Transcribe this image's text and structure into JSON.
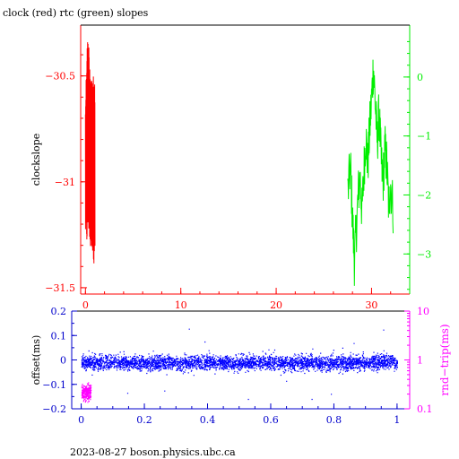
{
  "title": "clock (red) rtc (green) slopes",
  "footer": "2023-08-27 boson.physics.ubc.ca",
  "colors": {
    "red": "#ff0000",
    "green": "#00ee00",
    "blue": "#0000ff",
    "magenta": "#ff00ff",
    "axis_blue": "#0000cc",
    "black": "#000000"
  },
  "chart_data": [
    {
      "type": "line",
      "title": "clock (red) rtc (green) slopes",
      "ylabel": "clockslope",
      "xlim": [
        -0.5,
        34
      ],
      "ylim": [
        -31.53,
        -30.26
      ],
      "x_ticks": [
        0,
        10,
        20,
        30
      ],
      "y_ticks": [
        -30.5,
        -31,
        -31.5
      ],
      "y_tick_labels": [
        "−30.5",
        "−31",
        "−31.5"
      ],
      "y2lim": [
        -3.68,
        0.88
      ],
      "y2_ticks": [
        0,
        -1,
        -2,
        -3
      ],
      "y2_tick_labels": [
        "0",
        "−1",
        "−2",
        "−3"
      ],
      "series": [
        {
          "color": "#ff0000",
          "axis": "left",
          "x_range": [
            0.0,
            1.0
          ],
          "n": 90,
          "envelope_top": [
            [
              0.0,
              -30.62
            ],
            [
              0.15,
              -30.35
            ],
            [
              0.3,
              -30.3
            ],
            [
              0.5,
              -30.45
            ],
            [
              0.7,
              -30.5
            ],
            [
              0.85,
              -30.5
            ],
            [
              1.0,
              -30.55
            ]
          ],
          "envelope_bottom": [
            [
              0.0,
              -31.25
            ],
            [
              0.15,
              -31.3
            ],
            [
              0.3,
              -31.22
            ],
            [
              0.5,
              -31.32
            ],
            [
              0.7,
              -31.3
            ],
            [
              0.85,
              -31.45
            ],
            [
              1.0,
              -31.35
            ]
          ]
        },
        {
          "color": "#00ee00",
          "axis": "right",
          "x": [
            27.5,
            27.8,
            28.0,
            28.2,
            28.4,
            28.6,
            28.8,
            29.0,
            29.2,
            29.4,
            29.6,
            29.8,
            30.0,
            30.2,
            30.4,
            30.6,
            30.8,
            31.0,
            31.2,
            31.4,
            31.6,
            31.8,
            32.0,
            32.3
          ],
          "y": [
            -2.0,
            -1.5,
            -2.4,
            -3.1,
            -2.6,
            -2.0,
            -1.7,
            -2.3,
            -1.6,
            -1.0,
            -1.5,
            -0.9,
            -0.4,
            0.2,
            -0.5,
            -1.1,
            -0.6,
            -1.4,
            -1.8,
            -1.2,
            -1.5,
            -2.2,
            -1.8,
            -2.3
          ],
          "noise": 0.45
        }
      ]
    },
    {
      "type": "scatter",
      "ylabel": "offset(ms)",
      "y2label": "rnd−trip(ms)",
      "xlim": [
        -0.03,
        1.04
      ],
      "x_ticks": [
        0,
        0.2,
        0.4,
        0.6,
        0.8,
        1
      ],
      "x_tick_labels": [
        "0",
        "0.2",
        "0.4",
        "0.6",
        "0.8",
        "1"
      ],
      "ylim": [
        -0.2,
        0.2
      ],
      "y_ticks": [
        0.2,
        0.1,
        0,
        -0.1,
        -0.2
      ],
      "y_tick_labels": [
        "0.2",
        "0.1",
        "0",
        "−0.1",
        "−0.2"
      ],
      "y2_scale": "log",
      "y2lim": [
        0.1,
        10
      ],
      "y2_ticks": [
        10,
        1,
        0.1
      ],
      "y2_tick_labels": [
        "10",
        "1",
        "0.1"
      ],
      "series": [
        {
          "color": "#0000ff",
          "axis": "left",
          "x_range": [
            0.0,
            1.0
          ],
          "center": -0.01,
          "spread": 0.015,
          "n": 6000
        },
        {
          "color": "#ff00ff",
          "axis": "right",
          "x_range": [
            0.0,
            0.03
          ],
          "center": 0.22,
          "spread": 0.06,
          "n": 300
        }
      ]
    }
  ]
}
